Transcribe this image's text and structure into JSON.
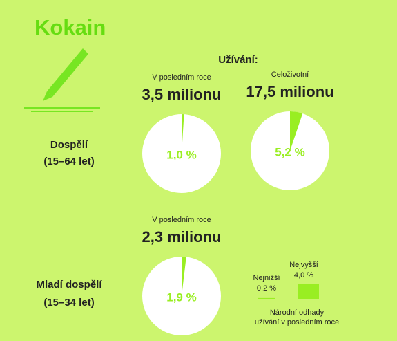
{
  "title": "Kokain",
  "heading": "Užívání:",
  "groups": [
    [
      "Dospělí",
      "(15–64 let)"
    ],
    [
      "Mladí dospělí",
      "(15–34 let)"
    ]
  ],
  "chart_data": [
    {
      "type": "pie",
      "subtitle": "V posledním roce",
      "headline": "3,5 milionu",
      "values": [
        1.0
      ],
      "value_labels": [
        "1,0 %"
      ],
      "color": "#99ee22"
    },
    {
      "type": "pie",
      "subtitle": "Celoživotní",
      "headline": "17,5 milionu",
      "values": [
        5.2
      ],
      "value_labels": [
        "5,2 %"
      ],
      "color": "#99ee22"
    },
    {
      "type": "pie",
      "subtitle": "V posledním roce",
      "headline": "2,3 milionu",
      "values": [
        1.9
      ],
      "value_labels": [
        "1,9 %"
      ],
      "color": "#99ee22"
    }
  ],
  "legend": {
    "items": [
      {
        "name": "Nejnižší",
        "value": 0.2,
        "label": "0,2 %"
      },
      {
        "name": "Nejvyšší",
        "value": 4.0,
        "label": "4,0 %"
      }
    ],
    "note": [
      "Národní odhady",
      "užívání v posledním roce"
    ]
  }
}
